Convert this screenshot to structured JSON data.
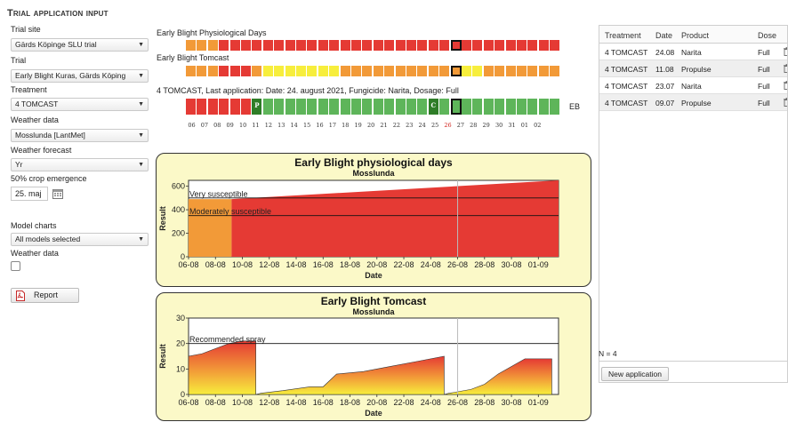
{
  "panel_title": "Trial application input",
  "fields": {
    "trial_site": {
      "label": "Trial site",
      "value": "Gärds Köpinge SLU trial"
    },
    "trial": {
      "label": "Trial",
      "value": "Early Blight Kuras, Gärds Köping"
    },
    "treatment": {
      "label": "Treatment",
      "value": "4 TOMCAST"
    },
    "weather_data": {
      "label": "Weather data",
      "value": "Mosslunda [LantMet]"
    },
    "weather_forecast": {
      "label": "Weather forecast",
      "value": "Yr"
    },
    "crop_emergence": {
      "label": "50% crop emergence",
      "value": "25. maj"
    },
    "model_charts": {
      "label": "Model charts",
      "value": "All models selected"
    },
    "weather_data_checkbox": {
      "label": "Weather data",
      "checked": false
    }
  },
  "report_label": "Report",
  "grids": {
    "physiological": {
      "title": "Early Blight Physiological Days",
      "cells": [
        "o",
        "o",
        "o",
        "r",
        "r",
        "r",
        "r",
        "r",
        "r",
        "r",
        "r",
        "r",
        "r",
        "r",
        "r",
        "r",
        "r",
        "r",
        "r",
        "r",
        "r",
        "r",
        "r",
        "r",
        "r",
        "r",
        "r",
        "r",
        "r",
        "r",
        "r",
        "r",
        "r",
        "r"
      ]
    },
    "tomcast": {
      "title": "Early Blight Tomcast",
      "cells": [
        "o",
        "o",
        "o",
        "r",
        "r",
        "r",
        "o",
        "y",
        "y",
        "y",
        "y",
        "y",
        "y",
        "y",
        "o",
        "o",
        "o",
        "o",
        "o",
        "o",
        "o",
        "o",
        "o",
        "o",
        "o",
        "y",
        "y",
        "o",
        "o",
        "o",
        "o",
        "o",
        "o",
        "o"
      ]
    },
    "application": {
      "title": "4 TOMCAST, Last application: Date: 24. august 2021, Fungicide: Narita, Dosage: Full",
      "cells": [
        "r",
        "r",
        "r",
        "r",
        "r",
        "r",
        "g",
        "g",
        "g",
        "g",
        "g",
        "g",
        "g",
        "g",
        "g",
        "g",
        "g",
        "g",
        "g",
        "g",
        "g",
        "g",
        "g",
        "g",
        "g",
        "g",
        "g",
        "g",
        "g",
        "g",
        "g",
        "g",
        "g",
        "g"
      ],
      "marks": [
        {
          "index": 6,
          "text": "P"
        },
        {
          "index": 22,
          "text": "C"
        }
      ],
      "side_label": "EB"
    },
    "selected_index": 24,
    "days": [
      "06",
      "07",
      "08",
      "09",
      "10",
      "11",
      "12",
      "13",
      "14",
      "15",
      "16",
      "17",
      "18",
      "19",
      "20",
      "21",
      "22",
      "23",
      "24",
      "25",
      "26",
      "27",
      "28",
      "29",
      "30",
      "31",
      "01",
      "02"
    ],
    "highlight_day": "26"
  },
  "colors": {
    "r": "#e53a34",
    "o": "#f29a38",
    "y": "#f7ee3c",
    "g": "#5eb55a",
    "dg": "#2e7d27",
    "panel": "#fbf9c8"
  },
  "chart_data": [
    {
      "type": "area",
      "title": "Early Blight physiological days",
      "subtitle": "Mosslunda",
      "xlabel": "Date",
      "ylabel": "Result",
      "ylim": [
        0,
        650
      ],
      "yticks": [
        0,
        200,
        400,
        600
      ],
      "xticks": [
        "06-08",
        "08-08",
        "10-08",
        "12-08",
        "14-08",
        "16-08",
        "18-08",
        "20-08",
        "22-08",
        "24-08",
        "26-08",
        "28-08",
        "30-08",
        "01-09"
      ],
      "x_range": [
        0,
        27.5
      ],
      "thresholds": [
        {
          "label": "Very susceptible",
          "value": 500
        },
        {
          "label": "Moderately susceptible",
          "value": 350
        }
      ],
      "current_day_x": 20,
      "series": [
        {
          "x": [
            0,
            3.2
          ],
          "y": [
            490,
            490
          ],
          "color": "#f29a38"
        },
        {
          "x": [
            3.2,
            27.5
          ],
          "y": [
            490,
            660
          ],
          "color": "#e53a34"
        }
      ]
    },
    {
      "type": "area",
      "title": "Early Blight Tomcast",
      "subtitle": "Mosslunda",
      "xlabel": "Date",
      "ylabel": "Result",
      "ylim": [
        0,
        30
      ],
      "yticks": [
        0,
        10,
        20,
        30
      ],
      "xticks": [
        "06-08",
        "08-08",
        "10-08",
        "12-08",
        "14-08",
        "16-08",
        "18-08",
        "20-08",
        "22-08",
        "24-08",
        "26-08",
        "28-08",
        "30-08",
        "01-09"
      ],
      "x_range": [
        0,
        27.5
      ],
      "thresholds": [
        {
          "label": "Recommended spray",
          "value": 20
        }
      ],
      "current_day_x": 20,
      "series": [
        {
          "x": [
            0,
            1,
            2,
            3,
            4,
            5
          ],
          "y": [
            15,
            16,
            18,
            20,
            21,
            21
          ]
        },
        {
          "x": [
            5,
            5.4,
            7,
            9,
            10,
            11,
            13,
            15,
            17,
            19
          ],
          "y": [
            0,
            0.5,
            1.5,
            3,
            3,
            8,
            9,
            11,
            13,
            15
          ]
        },
        {
          "x": [
            19,
            19.3,
            21,
            22,
            23,
            24,
            25,
            27
          ],
          "y": [
            0,
            0.4,
            2,
            4,
            8,
            11,
            14,
            14
          ]
        }
      ]
    }
  ],
  "table": {
    "headers": [
      "Treatment",
      "Date",
      "Product",
      "Dose"
    ],
    "rows": [
      {
        "treatment": "4 TOMCAST",
        "date": "24.08",
        "product": "Narita",
        "dose": "Full"
      },
      {
        "treatment": "4 TOMCAST",
        "date": "11.08",
        "product": "Propulse",
        "dose": "Full"
      },
      {
        "treatment": "4 TOMCAST",
        "date": "23.07",
        "product": "Narita",
        "dose": "Full"
      },
      {
        "treatment": "4 TOMCAST",
        "date": "09.07",
        "product": "Propulse",
        "dose": "Full"
      }
    ],
    "count_label": "N = 4",
    "new_button_label": "New application"
  }
}
